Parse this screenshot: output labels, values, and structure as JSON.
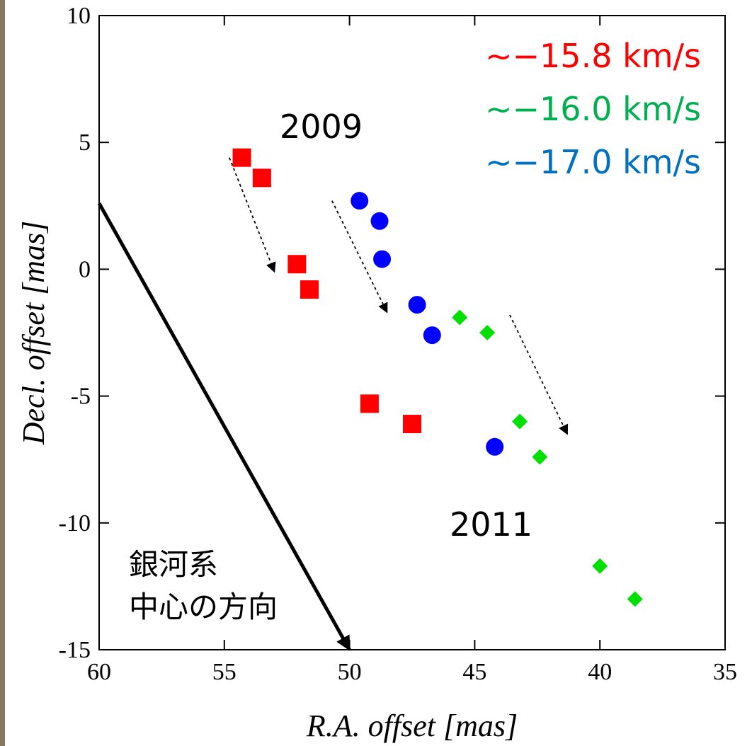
{
  "chart_data": {
    "type": "scatter",
    "xlabel": "R.A. offset [mas]",
    "ylabel": "Decl. offset [mas]",
    "xlim": [
      60,
      35
    ],
    "ylim": [
      -15,
      10
    ],
    "x_reversed": true,
    "xticks": [
      "60",
      "55",
      "50",
      "45",
      "40",
      "35"
    ],
    "yticks": [
      "10",
      "5",
      "0",
      "-5",
      "-10",
      "-15"
    ],
    "grid": false,
    "legend_position": "top-right",
    "series": [
      {
        "name": "~−15.8 km/s",
        "color": "#ff0000",
        "marker": "square",
        "points": [
          [
            54.3,
            4.4
          ],
          [
            53.5,
            3.6
          ],
          [
            52.1,
            0.2
          ],
          [
            51.6,
            -0.8
          ],
          [
            49.2,
            -5.3
          ],
          [
            47.5,
            -6.1
          ]
        ]
      },
      {
        "name": "~−16.0 km/s",
        "color": "#00e000",
        "marker": "diamond",
        "points": [
          [
            45.6,
            -1.9
          ],
          [
            44.5,
            -2.5
          ],
          [
            43.2,
            -6.0
          ],
          [
            42.4,
            -7.4
          ],
          [
            40.0,
            -11.7
          ],
          [
            38.6,
            -13.0
          ]
        ]
      },
      {
        "name": "~−17.0 km/s",
        "color": "#0000ff",
        "marker": "circle",
        "points": [
          [
            49.6,
            2.7
          ],
          [
            48.8,
            1.9
          ],
          [
            48.7,
            0.4
          ],
          [
            47.3,
            -1.4
          ],
          [
            46.7,
            -2.6
          ],
          [
            44.2,
            -7.0
          ]
        ]
      }
    ],
    "legend_text_colors": [
      "#ff0000",
      "#00b050",
      "#0070c0"
    ],
    "annotations": {
      "year_start": "2009",
      "year_end": "2011",
      "galactic_center_line1": "銀河系",
      "galactic_center_line2": "中心の方向"
    },
    "arrows": [
      {
        "kind": "galactic-center",
        "style": "solid",
        "from": [
          60,
          2.6
        ],
        "to": [
          50,
          -15
        ]
      },
      {
        "kind": "proper-motion",
        "style": "dashed",
        "from": [
          54.8,
          4.4
        ],
        "to": [
          53.0,
          -0.1
        ]
      },
      {
        "kind": "proper-motion",
        "style": "dashed",
        "from": [
          50.7,
          2.7
        ],
        "to": [
          48.5,
          -1.7
        ]
      },
      {
        "kind": "proper-motion",
        "style": "dashed",
        "from": [
          43.6,
          -1.8
        ],
        "to": [
          41.3,
          -6.5
        ]
      }
    ]
  }
}
